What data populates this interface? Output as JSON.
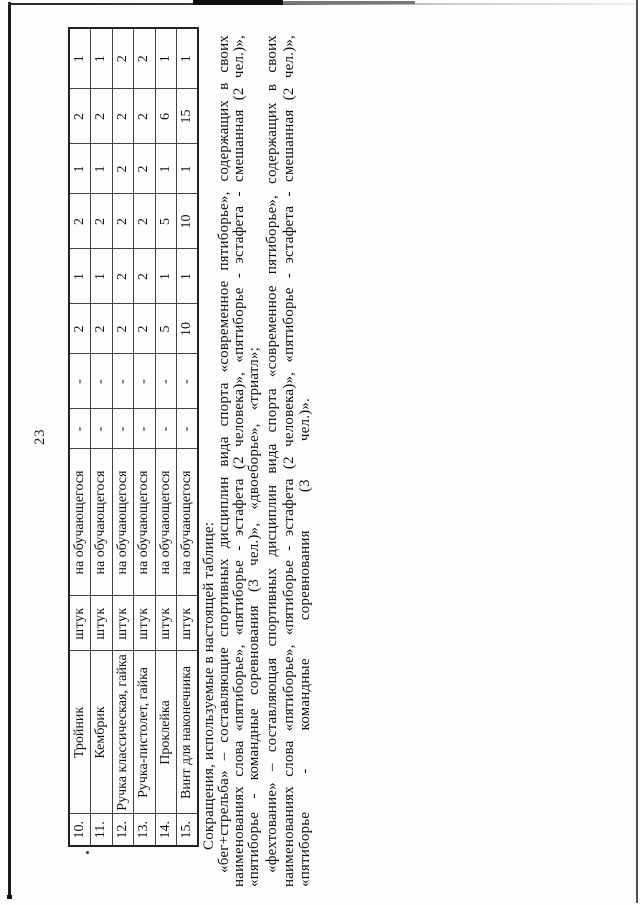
{
  "page": {
    "number": "23"
  },
  "table": {
    "unit_label": "штук",
    "per_label": "на обучающегося",
    "rows": [
      {
        "num": "10.",
        "name": "Тройник",
        "values": [
          "-",
          "-",
          "2",
          "1",
          "2",
          "1",
          "2",
          "1"
        ]
      },
      {
        "num": "11.",
        "name": "Кембрик",
        "values": [
          "-",
          "-",
          "2",
          "1",
          "2",
          "1",
          "2",
          "1"
        ]
      },
      {
        "num": "12.",
        "name": "Ручка классическая, гайка",
        "values": [
          "-",
          "-",
          "2",
          "2",
          "2",
          "2",
          "2",
          "2"
        ]
      },
      {
        "num": "13.",
        "name": "Ручка-пистолет, гайка",
        "values": [
          "-",
          "-",
          "2",
          "2",
          "2",
          "2",
          "2",
          "2"
        ]
      },
      {
        "num": "14.",
        "name": "Проклейка",
        "values": [
          "-",
          "-",
          "5",
          "1",
          "5",
          "1",
          "6",
          "1"
        ]
      },
      {
        "num": "15.",
        "name": "Винт для наконечника",
        "values": [
          "-",
          "-",
          "10",
          "1",
          "10",
          "1",
          "15",
          "1"
        ]
      }
    ]
  },
  "notes": {
    "lines": [
      {
        "text": "Сокращения, используемые в настоящей таблице:"
      },
      {
        "text": "«бег+стрельба» – составляющие спортивных дисциплин вида спорта «современное пятиборье», содержащих в своих"
      },
      {
        "text": "наименованиях слова «пятиборье», «пятиборье - эстафета (2 человека)», «пятиборье - эстафета - смешанная (2 чел.)»,"
      },
      {
        "text": "«пятиборье - командные соревнования (3 чел.)», «двоеборье», «триатл»;"
      },
      {
        "text": "«фехтование» – составляющая спортивных дисциплин вида спорта «современное пятиборье», содержащих в своих"
      },
      {
        "text": "наименованиях слова «пятиборье», «пятиборье - эстафета (2 человека)», «пятиборье - эстафета - смешанная (2 чел.)»,"
      },
      {
        "text": "«пятиборье - командные соревнования (3 чел.)»."
      }
    ]
  }
}
